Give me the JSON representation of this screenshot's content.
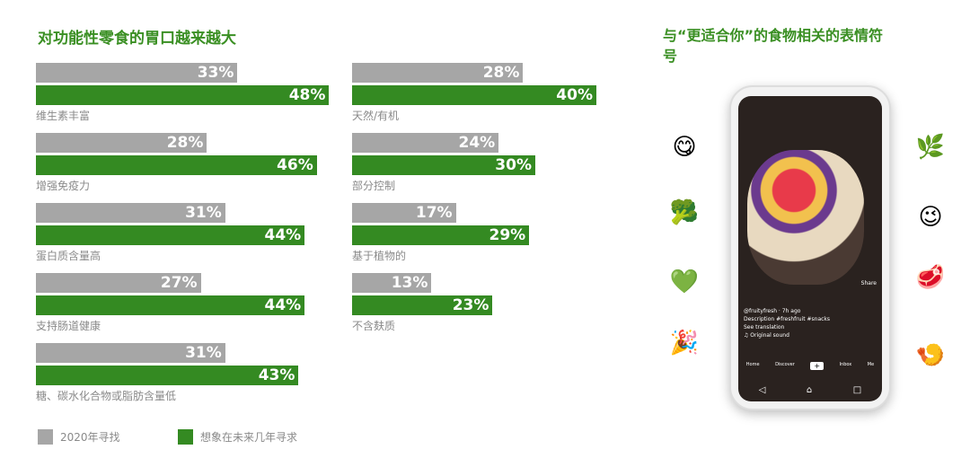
{
  "chart_data": {
    "type": "bar",
    "orientation": "horizontal",
    "title": "对功能性零食的胃口越来越大",
    "categories": [
      "维生素丰富",
      "增强免疫力",
      "蛋白质含量高",
      "支持肠道健康",
      "糖、碳水化合物或脂肪含量低",
      "天然/有机",
      "部分控制",
      "基于植物的",
      "不含麸质"
    ],
    "series": [
      {
        "name": "2020年寻找",
        "color": "#a6a6a6",
        "values": [
          33,
          28,
          31,
          27,
          31,
          28,
          24,
          17,
          13
        ]
      },
      {
        "name": "想象在未来几年寻求",
        "color": "#348a22",
        "values": [
          48,
          46,
          44,
          44,
          43,
          40,
          30,
          29,
          23
        ]
      }
    ],
    "value_suffix": "%",
    "legend": "bottom-left"
  },
  "right": {
    "title": "与“更适合你”的食物相关的表情符号",
    "phone": {
      "user": "@fruityfresh · 7h ago",
      "desc": "Description #freshfruit #snacks",
      "translate": "See translation",
      "sound": "♫ Original sound",
      "share": "Share",
      "nav": [
        "Home",
        "Discover",
        "+",
        "Inbox",
        "Me"
      ],
      "sys": [
        "◁",
        "⌂",
        "□"
      ]
    },
    "emojis": [
      "😋",
      "🥦",
      "💚",
      "🎉",
      "🌿",
      "😉",
      "🥩",
      "🍤"
    ]
  }
}
